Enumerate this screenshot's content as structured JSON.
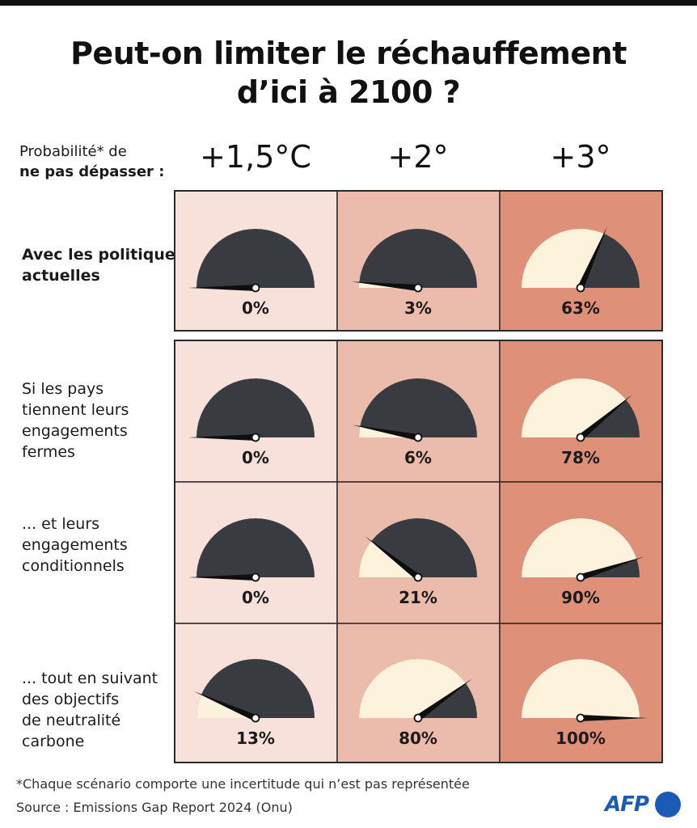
{
  "title": {
    "line1": "Peut-on limiter le réchauffement",
    "line2": "d’ici à 2100 ?"
  },
  "probability_label": {
    "line1": "Probabilité* de",
    "line2": "ne pas dépasser :"
  },
  "columns": [
    "+1,5°C",
    "+2°",
    "+3°"
  ],
  "rows": [
    {
      "label_lines": [
        "Avec les politiques",
        "actuelles"
      ]
    },
    {
      "label_lines": [
        "Si les pays",
        "tiennent leurs",
        "engagements",
        "fermes"
      ]
    },
    {
      "label_lines": [
        "... et leurs",
        "engagements",
        "conditionnels"
      ]
    },
    {
      "label_lines": [
        "... tout en suivant",
        "des objectifs",
        "de neutralité",
        "carbone"
      ]
    }
  ],
  "colors": {
    "col_backgrounds": [
      "#f7e1da",
      "#ebbcac",
      "#df9079"
    ],
    "gauge_dark": "#383c40",
    "gauge_fill": "#fdf2dc",
    "border": "#2a2a2a",
    "afp_blue": "#1a5bb8"
  },
  "chart_data": {
    "type": "gauge",
    "categories": [
      "+1,5°C",
      "+2°",
      "+3°"
    ],
    "series": [
      {
        "name": "Avec les politiques actuelles",
        "values": [
          0,
          3,
          63
        ],
        "labels": [
          "0%",
          "3%",
          "63%"
        ]
      },
      {
        "name": "Si les pays tiennent leurs engagements fermes",
        "values": [
          0,
          6,
          78
        ],
        "labels": [
          "0%",
          "6%",
          "78%"
        ]
      },
      {
        "name": "... et leurs engagements conditionnels",
        "values": [
          0,
          21,
          90
        ],
        "labels": [
          "0%",
          "21%",
          "90%"
        ]
      },
      {
        "name": "... tout en suivant des objectifs de neutralité carbone",
        "values": [
          13,
          80,
          100
        ],
        "labels": [
          "13%",
          "80%",
          "100%"
        ]
      }
    ],
    "ylim": [
      0,
      100
    ]
  },
  "footer": {
    "footnote": "*Chaque scénario comporte une incertitude qui n’est pas représentée",
    "source": "Source : Emissions Gap Report 2024 (Onu)",
    "logo_text": "AFP"
  }
}
